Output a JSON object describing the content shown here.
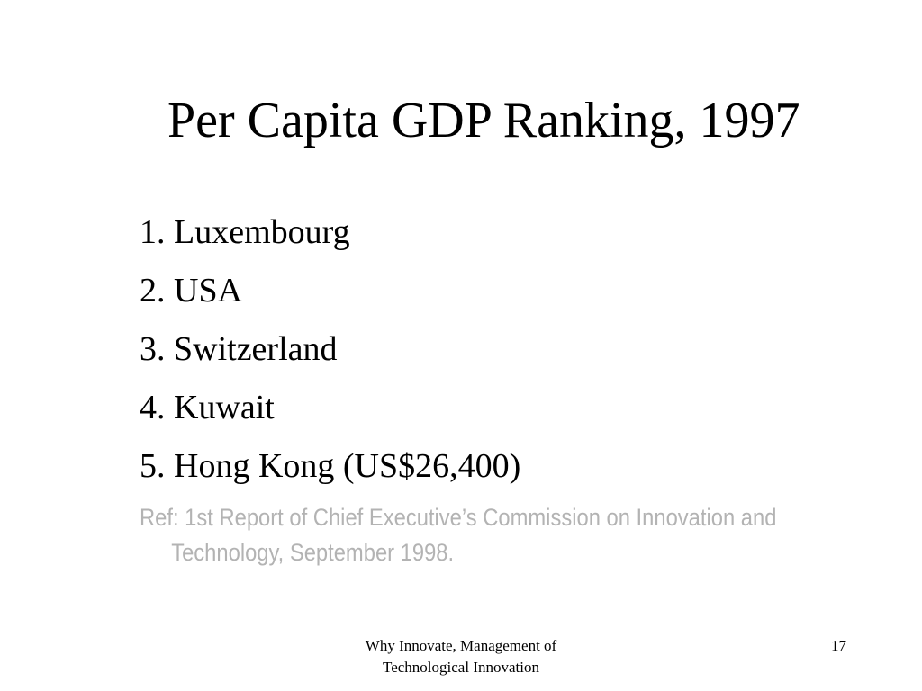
{
  "slide": {
    "title": "Per Capita GDP Ranking, 1997",
    "ranking": [
      "1. Luxembourg",
      "2. USA",
      "3. Switzerland",
      "4. Kuwait",
      "5. Hong Kong (US$26,400)"
    ],
    "reference": {
      "line1": "Ref: 1st Report of Chief Executive’s Commission on Innovation and",
      "line2": "Technology, September 1998."
    },
    "footer": {
      "line1": "Why Innovate, Management of",
      "line2": "Technological Innovation",
      "page_number": "17"
    }
  },
  "colors": {
    "background": "#ffffff",
    "text": "#000000",
    "reference_text": "#b3b3b3"
  }
}
